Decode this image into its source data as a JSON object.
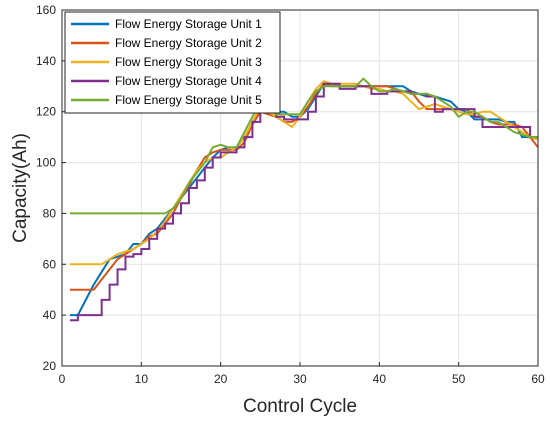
{
  "chart_data": {
    "type": "line",
    "title": "",
    "xlabel": "Control Cycle",
    "ylabel": "Capacity(Ah)",
    "xlim": [
      0,
      60
    ],
    "ylim": [
      20,
      160
    ],
    "xticks": [
      0,
      10,
      20,
      30,
      40,
      50,
      60
    ],
    "yticks": [
      20,
      40,
      60,
      80,
      100,
      120,
      140,
      160
    ],
    "grid": true,
    "legend_position": "top-left",
    "series": [
      {
        "name": "Flow Energy Storage Unit 1",
        "color": "#0072BD",
        "step": false,
        "x": [
          1,
          2,
          3,
          4,
          5,
          6,
          7,
          8,
          9,
          10,
          11,
          12,
          13,
          14,
          15,
          16,
          17,
          18,
          19,
          20,
          21,
          22,
          23,
          24,
          25,
          26,
          27,
          28,
          29,
          30,
          31,
          32,
          33,
          34,
          35,
          36,
          37,
          38,
          39,
          40,
          41,
          42,
          43,
          44,
          45,
          46,
          47,
          48,
          49,
          50,
          51,
          52,
          53,
          54,
          55,
          56,
          57,
          58,
          59,
          60
        ],
        "y": [
          40,
          40,
          46,
          52,
          57,
          62,
          63,
          64,
          68,
          68,
          72,
          74,
          78,
          82,
          86,
          90,
          94,
          98,
          102,
          105,
          106,
          106,
          110,
          115,
          120,
          120,
          120,
          120,
          118,
          118,
          121,
          126,
          131,
          131,
          130,
          130,
          130,
          130,
          130,
          130,
          130,
          130,
          130,
          128,
          127,
          126,
          126,
          125,
          124,
          121,
          120,
          117,
          117,
          117,
          117,
          116,
          116,
          110,
          110,
          110
        ]
      },
      {
        "name": "Flow Energy Storage Unit 2",
        "color": "#D95319",
        "step": false,
        "x": [
          1,
          2,
          3,
          4,
          5,
          6,
          7,
          8,
          9,
          10,
          11,
          12,
          13,
          14,
          15,
          16,
          17,
          18,
          19,
          20,
          21,
          22,
          23,
          24,
          25,
          26,
          27,
          28,
          29,
          30,
          31,
          32,
          33,
          34,
          35,
          36,
          37,
          38,
          39,
          40,
          41,
          42,
          43,
          44,
          45,
          46,
          47,
          48,
          49,
          50,
          51,
          52,
          53,
          54,
          55,
          56,
          57,
          58,
          59,
          60
        ],
        "y": [
          50,
          50,
          50,
          50,
          54,
          58,
          62,
          64,
          66,
          68,
          71,
          72,
          76,
          80,
          86,
          91,
          97,
          102,
          104,
          105,
          105,
          105,
          108,
          115,
          120,
          119,
          118,
          116,
          116,
          118,
          122,
          127,
          131,
          130,
          130,
          130,
          130,
          130,
          130,
          130,
          130,
          129,
          128,
          128,
          124,
          121,
          121,
          121,
          121,
          121,
          121,
          118,
          118,
          116,
          115,
          115,
          115,
          114,
          110,
          106
        ]
      },
      {
        "name": "Flow Energy Storage Unit 3",
        "color": "#EDB120",
        "step": false,
        "x": [
          1,
          2,
          3,
          4,
          5,
          6,
          7,
          8,
          9,
          10,
          11,
          12,
          13,
          14,
          15,
          16,
          17,
          18,
          19,
          20,
          21,
          22,
          23,
          24,
          25,
          26,
          27,
          28,
          29,
          30,
          31,
          32,
          33,
          34,
          35,
          36,
          37,
          38,
          39,
          40,
          41,
          42,
          43,
          44,
          45,
          46,
          47,
          48,
          49,
          50,
          51,
          52,
          53,
          54,
          55,
          56,
          57,
          58,
          59,
          60
        ],
        "y": [
          60,
          60,
          60,
          60,
          60,
          62,
          64,
          65,
          66,
          68,
          70,
          73,
          77,
          82,
          87,
          92,
          97,
          100,
          102,
          102,
          104,
          106,
          110,
          116,
          122,
          120,
          118,
          116,
          114,
          118,
          124,
          129,
          132,
          131,
          131,
          131,
          131,
          130,
          129,
          129,
          128,
          128,
          127,
          124,
          121,
          122,
          123,
          122,
          121,
          120,
          119,
          119,
          120,
          120,
          118,
          116,
          114,
          112,
          110,
          109
        ]
      },
      {
        "name": "Flow Energy Storage Unit 4",
        "color": "#7E2F8E",
        "step": true,
        "x": [
          1,
          2,
          3,
          4,
          5,
          6,
          7,
          8,
          9,
          10,
          11,
          12,
          13,
          14,
          15,
          16,
          17,
          18,
          19,
          20,
          21,
          22,
          23,
          24,
          25,
          26,
          27,
          28,
          29,
          30,
          31,
          32,
          33,
          34,
          35,
          36,
          37,
          38,
          39,
          40,
          41,
          42,
          43,
          44,
          45,
          46,
          47,
          48,
          49,
          50,
          51,
          52,
          53,
          54,
          55,
          56,
          57,
          58,
          59,
          60
        ],
        "y": [
          38,
          40,
          40,
          40,
          46,
          52,
          58,
          63,
          64,
          66,
          70,
          74,
          76,
          80,
          84,
          90,
          93,
          98,
          102,
          104,
          104,
          106,
          110,
          116,
          123,
          122,
          118,
          117,
          117,
          117,
          120,
          126,
          131,
          131,
          129,
          129,
          130,
          130,
          127,
          127,
          128,
          128,
          128,
          127,
          127,
          126,
          120,
          121,
          121,
          121,
          121,
          118,
          114,
          114,
          114,
          114,
          114,
          114,
          110,
          110
        ]
      },
      {
        "name": "Flow Energy Storage Unit 5",
        "color": "#77AC30",
        "step": false,
        "x": [
          1,
          2,
          3,
          4,
          5,
          6,
          7,
          8,
          9,
          10,
          11,
          12,
          13,
          14,
          15,
          16,
          17,
          18,
          19,
          20,
          21,
          22,
          23,
          24,
          25,
          26,
          27,
          28,
          29,
          30,
          31,
          32,
          33,
          34,
          35,
          36,
          37,
          38,
          39,
          40,
          41,
          42,
          43,
          44,
          45,
          46,
          47,
          48,
          49,
          50,
          51,
          52,
          53,
          54,
          55,
          56,
          57,
          58,
          59,
          60
        ],
        "y": [
          80,
          80,
          80,
          80,
          80,
          80,
          80,
          80,
          80,
          80,
          80,
          80,
          80,
          82,
          86,
          92,
          96,
          100,
          106,
          107,
          106,
          106,
          112,
          118,
          124,
          121,
          119,
          119,
          119,
          119,
          124,
          128,
          130,
          130,
          130,
          130,
          130,
          133,
          130,
          128,
          128,
          129,
          128,
          127,
          127,
          127,
          126,
          124,
          122,
          118,
          120,
          120,
          118,
          116,
          116,
          114,
          112,
          111,
          110,
          110
        ]
      }
    ]
  }
}
